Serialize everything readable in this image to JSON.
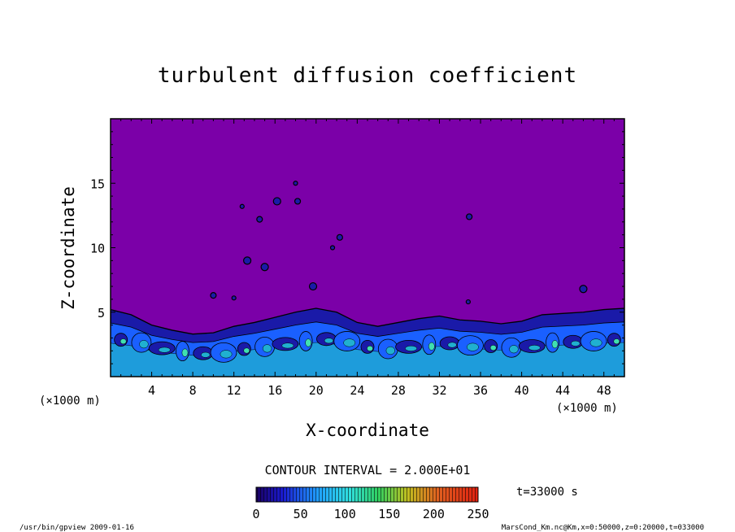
{
  "chart_data": {
    "type": "heatmap",
    "title": "turbulent diffusion coefficient",
    "xlabel": "X-coordinate",
    "ylabel": "Z-coordinate",
    "x_unit": "(×1000 m)",
    "y_unit": "(×1000 m)",
    "xlim": [
      0,
      50
    ],
    "ylim": [
      0,
      20
    ],
    "x_ticks": [
      4,
      8,
      12,
      16,
      20,
      24,
      28,
      32,
      36,
      40,
      44,
      48
    ],
    "y_ticks": [
      5,
      10,
      15
    ],
    "contour_interval": "CONTOUR INTERVAL = 2.000E+01",
    "time_label": "t=33000 s",
    "colorbar": {
      "min": 0,
      "max": 250,
      "ticks": [
        0,
        50,
        100,
        150,
        200,
        250
      ]
    },
    "background_value": 0,
    "boundary_layer": [
      {
        "x": 0,
        "top": 5.2
      },
      {
        "x": 2,
        "top": 4.8
      },
      {
        "x": 4,
        "top": 4.0
      },
      {
        "x": 6,
        "top": 3.6
      },
      {
        "x": 8,
        "top": 3.3
      },
      {
        "x": 10,
        "top": 3.4
      },
      {
        "x": 12,
        "top": 3.9
      },
      {
        "x": 14,
        "top": 4.2
      },
      {
        "x": 16,
        "top": 4.6
      },
      {
        "x": 18,
        "top": 5.0
      },
      {
        "x": 20,
        "top": 5.3
      },
      {
        "x": 22,
        "top": 5.0
      },
      {
        "x": 24,
        "top": 4.2
      },
      {
        "x": 26,
        "top": 3.9
      },
      {
        "x": 28,
        "top": 4.2
      },
      {
        "x": 30,
        "top": 4.5
      },
      {
        "x": 32,
        "top": 4.7
      },
      {
        "x": 34,
        "top": 4.4
      },
      {
        "x": 36,
        "top": 4.3
      },
      {
        "x": 38,
        "top": 4.1
      },
      {
        "x": 40,
        "top": 4.3
      },
      {
        "x": 42,
        "top": 4.8
      },
      {
        "x": 44,
        "top": 4.9
      },
      {
        "x": 46,
        "top": 5.0
      },
      {
        "x": 48,
        "top": 5.2
      },
      {
        "x": 50,
        "top": 5.3
      }
    ],
    "eddies": [
      {
        "x": 18.0,
        "z": 15.0
      },
      {
        "x": 18.2,
        "z": 13.6
      },
      {
        "x": 16.2,
        "z": 13.6
      },
      {
        "x": 21.6,
        "z": 10.0
      },
      {
        "x": 22.3,
        "z": 10.8
      },
      {
        "x": 15.0,
        "z": 8.5
      },
      {
        "x": 12.0,
        "z": 6.1
      },
      {
        "x": 10.0,
        "z": 6.3
      },
      {
        "x": 19.7,
        "z": 7.0
      },
      {
        "x": 34.8,
        "z": 5.8
      },
      {
        "x": 34.9,
        "z": 12.4
      },
      {
        "x": 46.0,
        "z": 6.8
      },
      {
        "x": 12.8,
        "z": 13.2
      },
      {
        "x": 14.5,
        "z": 12.2
      },
      {
        "x": 13.3,
        "z": 9.0
      }
    ]
  },
  "footer": {
    "left": "/usr/bin/gpview  2009-01-16",
    "right": "MarsCond_Km.nc@Km,x=0:50000,z=0:20000,t=033000"
  },
  "colors": {
    "background": "#7b00a8",
    "low": "#1a1aa8",
    "mid": "#1a60ff",
    "high": "#20b0d0",
    "peak": "#40e0b0"
  }
}
